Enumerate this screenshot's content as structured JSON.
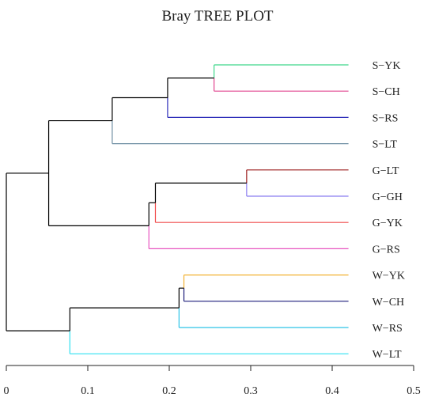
{
  "chart_data": {
    "type": "dendrogram",
    "title": "Bray TREE PLOT",
    "xlabel": "",
    "ylabel": "",
    "xlim": [
      0,
      0.5
    ],
    "x_ticks": [
      0,
      0.1,
      0.2,
      0.3,
      0.4,
      0.5
    ],
    "x_tick_labels": [
      "0",
      "0.1",
      "0.2",
      "0.3",
      "0.4",
      "0.5"
    ],
    "grid": false,
    "leaves": [
      {
        "label": "S−YK",
        "color": "#3ed68a"
      },
      {
        "label": "S−CH",
        "color": "#e0458f"
      },
      {
        "label": "S−RS",
        "color": "#2a2ab8"
      },
      {
        "label": "S−LT",
        "color": "#6f8fa3"
      },
      {
        "label": "G−LT",
        "color": "#9b1b1b"
      },
      {
        "label": "G−GH",
        "color": "#8a7ef0"
      },
      {
        "label": "G−YK",
        "color": "#f04a4a"
      },
      {
        "label": "G−RS",
        "color": "#e855c0"
      },
      {
        "label": "W−YK",
        "color": "#f2b233"
      },
      {
        "label": "W−CH",
        "color": "#1c1c7a"
      },
      {
        "label": "W−RS",
        "color": "#2ec4e8"
      },
      {
        "label": "W−LT",
        "color": "#2fe0f0"
      }
    ],
    "leaf_end": 0.42,
    "merges": [
      {
        "height": 0.255,
        "left": 0,
        "right": 1
      },
      {
        "height": 0.198,
        "left": "m0",
        "right": 2
      },
      {
        "height": 0.13,
        "left": "m1",
        "right": 3
      },
      {
        "height": 0.295,
        "left": 4,
        "right": 5
      },
      {
        "height": 0.183,
        "left": "m3",
        "right": 6
      },
      {
        "height": 0.175,
        "left": "m4",
        "right": 7
      },
      {
        "height": 0.052,
        "left": "m2",
        "right": "m5"
      },
      {
        "height": 0.218,
        "left": 8,
        "right": 9
      },
      {
        "height": 0.212,
        "left": "m7",
        "right": 10
      },
      {
        "height": 0.078,
        "left": "m8",
        "right": 11
      },
      {
        "height": 0.0,
        "left": "m6",
        "right": "m9"
      }
    ]
  }
}
